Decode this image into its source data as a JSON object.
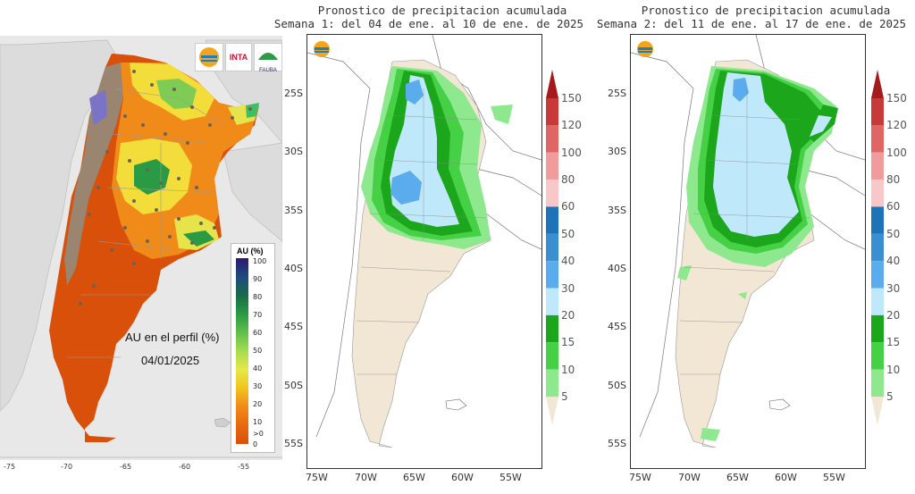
{
  "left_map": {
    "logos": [
      "logo-1",
      "INTA",
      "FAUBA"
    ],
    "legend_title": "AU (%)",
    "legend_ticks": [
      "100",
      "90",
      "80",
      "70",
      "60",
      "50",
      "40",
      "30",
      "20",
      "10",
      ">0",
      "0"
    ],
    "caption_line1": "AU en el perfil (%)",
    "caption_line2": "04/01/2025",
    "x_ticks": [
      "-75",
      "-70",
      "-65",
      "-60",
      "-55"
    ]
  },
  "panel1": {
    "title_line1": "Pronostico de precipitacion acumulada",
    "title_line2": "Semana 1: del 04 de ene. al 10 de ene. de 2025"
  },
  "panel2": {
    "title_line1": "Pronostico de precipitacion acumulada",
    "title_line2": "Semana 2: del 11 de ene. al 17 de ene. de 2025"
  },
  "lat_labels": [
    "25S",
    "30S",
    "35S",
    "40S",
    "45S",
    "50S",
    "55S"
  ],
  "lon_labels": [
    "75W",
    "70W",
    "65W",
    "60W",
    "55W"
  ],
  "colorbar": {
    "labels": [
      "150",
      "120",
      "100",
      "80",
      "60",
      "50",
      "40",
      "30",
      "20",
      "15",
      "10",
      "5"
    ],
    "colors": [
      "#a51a1a",
      "#c83a3a",
      "#e06666",
      "#f09c9c",
      "#f8c8c8",
      "#1c73b8",
      "#3a8fd0",
      "#5aacec",
      "#bfe9fb",
      "#1ca61c",
      "#46d046",
      "#8ee88e",
      "#f2e6d4"
    ]
  }
}
